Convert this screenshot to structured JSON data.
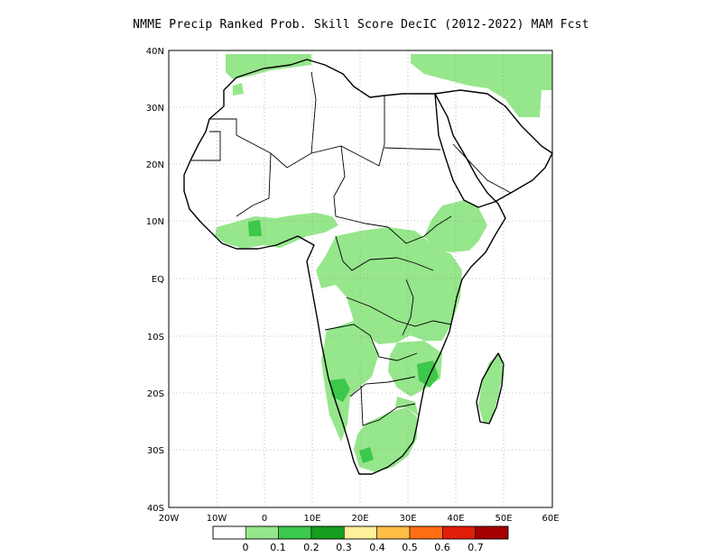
{
  "title": "NMME Precip Ranked Prob. Skill Score DecIC (2012-2022) MAM Fcst",
  "map": {
    "lat_ticks": [
      "40N",
      "30N",
      "20N",
      "10N",
      "EQ",
      "10S",
      "20S",
      "30S",
      "40S"
    ],
    "lon_ticks": [
      "20W",
      "10W",
      "0",
      "10E",
      "20E",
      "30E",
      "40E",
      "50E",
      "60E"
    ],
    "lat_range": [
      -40,
      40
    ],
    "lon_range": [
      -20,
      60
    ],
    "grid": "dotted",
    "outline_color": "#000000"
  },
  "colorbar": {
    "labels": [
      "0",
      "0.1",
      "0.2",
      "0.3",
      "0.4",
      "0.5",
      "0.6",
      "0.7"
    ],
    "colors": [
      "#ffffff",
      "#96e68c",
      "#3cc84b",
      "#14a01e",
      "#fff09b",
      "#ffbe46",
      "#ff6e14",
      "#e11e0a",
      "#a50000"
    ]
  }
}
